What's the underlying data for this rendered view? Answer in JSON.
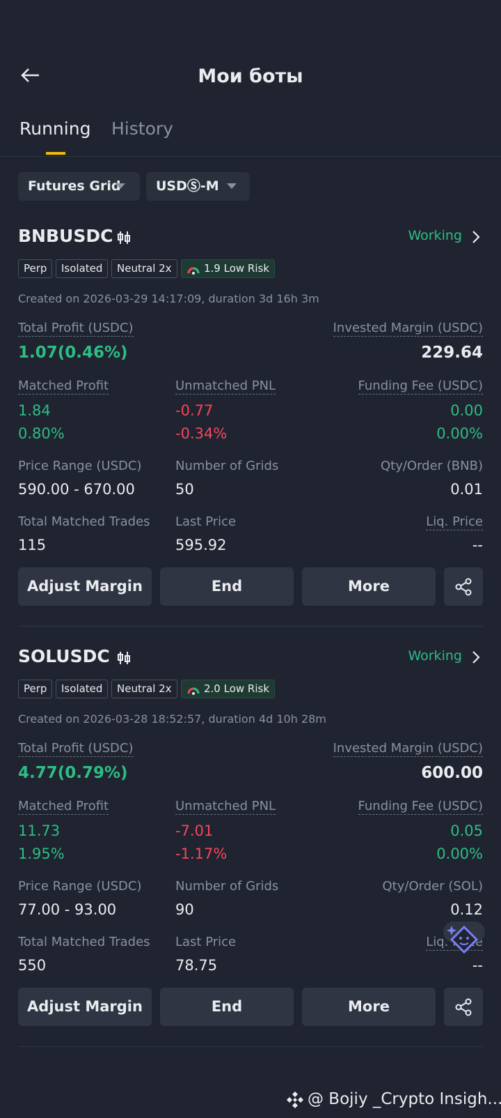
{
  "header": {
    "title": "Мои боты"
  },
  "tabs": [
    "Running",
    "History"
  ],
  "filters": [
    "Futures Grid",
    "USDⓈ-M"
  ],
  "bots": [
    {
      "symbol": "BNBUSDC",
      "status": "Working",
      "tags": [
        "Perp",
        "Isolated",
        "Neutral 2x"
      ],
      "risk": "1.9 Low Risk",
      "created": "Created on 2026-03-29 14:17:09, duration 3d 16h 3m",
      "total_profit_label": "Total Profit (USDC)",
      "total_profit": "1.07(0.46%)",
      "invested_label": "Invested Margin (USDC)",
      "invested": "229.64",
      "matched_label": "Matched Profit",
      "matched": "1.84",
      "matched_pct": "0.80%",
      "unmatched_label": "Unmatched PNL",
      "unmatched": "-0.77",
      "unmatched_pct": "-0.34%",
      "funding_label": "Funding Fee (USDC)",
      "funding": "0.00",
      "funding_pct": "0.00%",
      "range_label": "Price Range (USDC)",
      "range": "590.00 - 670.00",
      "grids_label": "Number of Grids",
      "grids": "50",
      "qty_label": "Qty/Order (BNB)",
      "qty": "0.01",
      "trades_label": "Total Matched Trades",
      "trades": "115",
      "last_label": "Last Price",
      "last": "595.92",
      "liq_label": "Liq. Price",
      "liq": "--",
      "buttons": [
        "Adjust Margin",
        "End",
        "More"
      ]
    },
    {
      "symbol": "SOLUSDC",
      "status": "Working",
      "tags": [
        "Perp",
        "Isolated",
        "Neutral 2x"
      ],
      "risk": "2.0 Low Risk",
      "created": "Created on 2026-03-28 18:52:57, duration 4d 10h 28m",
      "total_profit_label": "Total Profit (USDC)",
      "total_profit": "4.77(0.79%)",
      "invested_label": "Invested Margin (USDC)",
      "invested": "600.00",
      "matched_label": "Matched Profit",
      "matched": "11.73",
      "matched_pct": "1.95%",
      "unmatched_label": "Unmatched PNL",
      "unmatched": "-7.01",
      "unmatched_pct": "-1.17%",
      "funding_label": "Funding Fee (USDC)",
      "funding": "0.05",
      "funding_pct": "0.00%",
      "range_label": "Price Range (USDC)",
      "range": "77.00 - 93.00",
      "grids_label": "Number of Grids",
      "grids": "90",
      "qty_label": "Qty/Order (SOL)",
      "qty": "0.12",
      "trades_label": "Total Matched Trades",
      "trades": "550",
      "last_label": "Last Price",
      "last": "78.75",
      "liq_label": "Liq. Price",
      "liq": "--",
      "buttons": [
        "Adjust Margin",
        "End",
        "More"
      ]
    }
  ],
  "watermark": "@ Bojiy _Crypto Insigh..."
}
